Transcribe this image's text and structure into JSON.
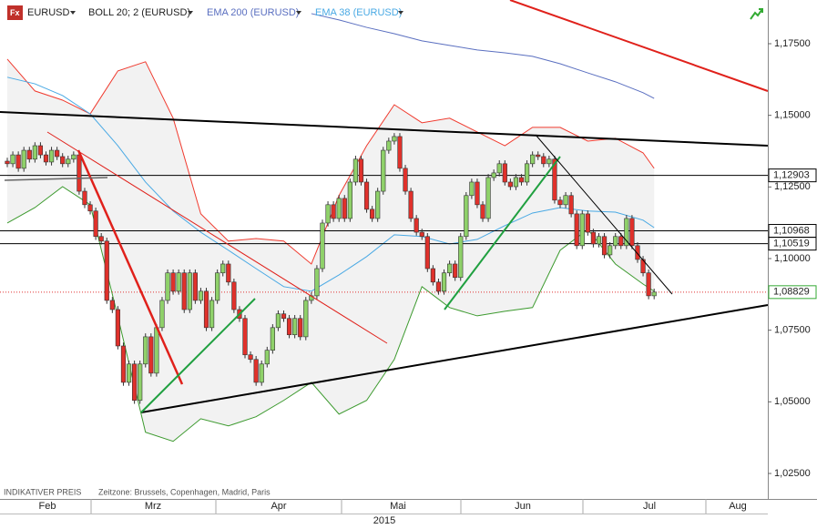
{
  "chart_data": {
    "type": "candlestick",
    "symbol": "EURUSD",
    "legend": [
      "BOLL 20; 2 (EURUSD)",
      "EMA 200 (EURUSD)",
      "EMA 38 (EURUSD)"
    ],
    "footer": [
      "INDIKATIVER PREIS",
      "Zeitzone: Brussels, Copenhagen, Madrid, Paris"
    ],
    "months": [
      "Feb",
      "Mrz",
      "Apr",
      "Mai",
      "Jun",
      "Jul",
      "Aug"
    ],
    "year": "2015",
    "ylim": [
      1.0161,
      1.19025
    ],
    "yticks": [
      {
        "value": 1.025,
        "label": "1,02500"
      },
      {
        "value": 1.05,
        "label": "1,05000"
      },
      {
        "value": 1.075,
        "label": "1,07500"
      },
      {
        "value": 1.1,
        "label": "1,10000"
      },
      {
        "value": 1.125,
        "label": "1,12500"
      },
      {
        "value": 1.15,
        "label": "1,15000"
      },
      {
        "value": 1.175,
        "label": "1,17500"
      }
    ],
    "price_levels": [
      {
        "value": 1.12903,
        "label": "1,12903"
      },
      {
        "value": 1.10968,
        "label": "1,10968"
      },
      {
        "value": 1.10519,
        "label": "1,10519"
      }
    ],
    "last_price": {
      "value": 1.08829,
      "label": "1,08829"
    },
    "up_color": "#8fd16a",
    "down_color": "#e0312b",
    "open": [
      1.134,
      1.1331,
      1.1362,
      1.1315,
      1.1378,
      1.1347,
      1.1394,
      1.1362,
      1.1337,
      1.1378,
      1.1356,
      1.1331,
      1.1347,
      1.1362,
      1.1235,
      1.1188,
      1.1166,
      1.1077,
      1.1061,
      1.0854,
      1.0822,
      1.0695,
      1.0568,
      1.0632,
      1.0505,
      1.0632,
      1.0727,
      1.06,
      1.0759,
      1.0854,
      1.095,
      1.0886,
      1.095,
      1.0822,
      1.095,
      1.0854,
      1.0886,
      1.0759,
      1.0854,
      1.095,
      1.0981,
      1.0918,
      1.0822,
      1.0791,
      1.0664,
      1.0648,
      1.0568,
      1.0632,
      1.068,
      1.0759,
      1.0807,
      1.0791,
      1.0734,
      1.0791,
      1.0727,
      1.0854,
      1.087,
      1.0965,
      1.1124,
      1.1188,
      1.114,
      1.121,
      1.114,
      1.1267,
      1.1347,
      1.1267,
      1.1172,
      1.114,
      1.1235,
      1.1378,
      1.141,
      1.1426,
      1.1315,
      1.1235,
      1.114,
      1.1092,
      1.1077,
      1.0965,
      1.0918,
      1.0886,
      1.095,
      1.0981,
      1.0934,
      1.1077,
      1.122,
      1.1267,
      1.1188,
      1.114,
      1.1283,
      1.1299,
      1.1331,
      1.1267,
      1.1251,
      1.1283,
      1.1267,
      1.1331,
      1.1362,
      1.1356,
      1.1331,
      1.1347,
      1.1204,
      1.1188,
      1.122,
      1.1156,
      1.1045,
      1.1156,
      1.1092,
      1.1051,
      1.1077,
      1.1013,
      1.1045,
      1.1077,
      1.1045,
      1.114,
      1.1045,
      1.0997,
      1.095,
      1.087
    ],
    "high": [
      1.1352,
      1.1374,
      1.1374,
      1.139,
      1.139,
      1.1406,
      1.1406,
      1.1374,
      1.139,
      1.139,
      1.1368,
      1.1359,
      1.1374,
      1.1374,
      1.1247,
      1.12,
      1.1178,
      1.1089,
      1.1073,
      1.0866,
      1.0834,
      1.0707,
      1.0644,
      1.0644,
      1.0644,
      1.0739,
      1.0739,
      1.0771,
      1.0866,
      1.0962,
      1.0962,
      1.0962,
      1.0962,
      1.0962,
      1.0962,
      1.0898,
      1.0898,
      1.0866,
      1.0962,
      1.0993,
      1.0993,
      1.093,
      1.0834,
      1.0803,
      1.0676,
      1.066,
      1.0644,
      1.0692,
      1.0771,
      1.0819,
      1.0819,
      1.0803,
      1.0803,
      1.0803,
      1.0866,
      1.0882,
      1.0977,
      1.1136,
      1.12,
      1.12,
      1.1222,
      1.1222,
      1.1279,
      1.1359,
      1.1359,
      1.1279,
      1.1184,
      1.1247,
      1.139,
      1.1422,
      1.1438,
      1.1438,
      1.1327,
      1.1247,
      1.1152,
      1.1104,
      1.1089,
      1.0977,
      1.093,
      1.0962,
      1.0993,
      1.0993,
      1.1089,
      1.1232,
      1.1279,
      1.1279,
      1.12,
      1.1295,
      1.1311,
      1.1343,
      1.1343,
      1.1279,
      1.1295,
      1.1295,
      1.1343,
      1.1374,
      1.1374,
      1.1368,
      1.1359,
      1.1359,
      1.1216,
      1.1232,
      1.1232,
      1.1168,
      1.1168,
      1.1168,
      1.1104,
      1.1089,
      1.1089,
      1.1057,
      1.1089,
      1.1089,
      1.1152,
      1.1152,
      1.1057,
      1.1009,
      1.0962,
      1.0895
    ],
    "low": [
      1.1319,
      1.1319,
      1.1303,
      1.1303,
      1.1335,
      1.1335,
      1.135,
      1.1325,
      1.1325,
      1.1344,
      1.1319,
      1.1319,
      1.1335,
      1.1223,
      1.1176,
      1.1154,
      1.1065,
      1.1049,
      1.0842,
      1.081,
      1.0683,
      1.0556,
      1.0556,
      1.0493,
      1.0493,
      1.062,
      1.0588,
      1.0588,
      1.0747,
      1.0842,
      1.0874,
      1.0874,
      1.081,
      1.081,
      1.0842,
      1.0842,
      1.0747,
      1.0747,
      1.0842,
      1.0938,
      1.0906,
      1.081,
      1.0779,
      1.0652,
      1.0636,
      1.0556,
      1.0556,
      1.062,
      1.0668,
      1.0747,
      1.0779,
      1.0722,
      1.0722,
      1.0715,
      1.0715,
      1.0842,
      1.0858,
      1.0953,
      1.1112,
      1.1128,
      1.1128,
      1.1128,
      1.1128,
      1.1255,
      1.1255,
      1.116,
      1.1128,
      1.1128,
      1.1223,
      1.1366,
      1.1398,
      1.1303,
      1.1223,
      1.1128,
      1.108,
      1.1065,
      1.0953,
      1.0906,
      1.0874,
      1.0874,
      1.0938,
      1.0922,
      1.0922,
      1.1065,
      1.1208,
      1.1176,
      1.1128,
      1.1128,
      1.1271,
      1.1287,
      1.1255,
      1.1239,
      1.1239,
      1.1255,
      1.1255,
      1.1319,
      1.1344,
      1.1319,
      1.1319,
      1.1192,
      1.1176,
      1.1176,
      1.1144,
      1.1033,
      1.1033,
      1.108,
      1.1039,
      1.1039,
      1.1001,
      1.1001,
      1.1033,
      1.1033,
      1.1033,
      1.1033,
      1.0985,
      1.0938,
      1.0858,
      1.0858
    ],
    "close": [
      1.1331,
      1.1362,
      1.1315,
      1.1378,
      1.1347,
      1.1394,
      1.1362,
      1.1337,
      1.1378,
      1.1356,
      1.1331,
      1.1347,
      1.1362,
      1.1235,
      1.1188,
      1.1166,
      1.1077,
      1.1061,
      1.0854,
      1.0822,
      1.0695,
      1.0568,
      1.0632,
      1.0505,
      1.0632,
      1.0727,
      1.06,
      1.0759,
      1.0854,
      1.095,
      1.0886,
      1.095,
      1.0822,
      1.095,
      1.0854,
      1.0886,
      1.0759,
      1.0854,
      1.095,
      1.0981,
      1.0918,
      1.0822,
      1.0791,
      1.0664,
      1.0648,
      1.0568,
      1.0632,
      1.068,
      1.0759,
      1.0807,
      1.0791,
      1.0734,
      1.0791,
      1.0727,
      1.0854,
      1.087,
      1.0965,
      1.1124,
      1.1188,
      1.114,
      1.121,
      1.114,
      1.1267,
      1.1347,
      1.1267,
      1.1172,
      1.114,
      1.1235,
      1.1378,
      1.141,
      1.1426,
      1.1315,
      1.1235,
      1.114,
      1.1092,
      1.1077,
      1.0965,
      1.0918,
      1.0886,
      1.095,
      1.0981,
      1.0934,
      1.1077,
      1.122,
      1.1267,
      1.1188,
      1.114,
      1.1283,
      1.1299,
      1.1331,
      1.1267,
      1.1251,
      1.1283,
      1.1267,
      1.1331,
      1.1362,
      1.1356,
      1.1331,
      1.1347,
      1.1204,
      1.1188,
      1.122,
      1.1156,
      1.1045,
      1.1156,
      1.1092,
      1.1051,
      1.1077,
      1.1013,
      1.1045,
      1.1077,
      1.1045,
      1.114,
      1.1045,
      1.0997,
      1.095,
      1.087,
      1.0883
    ],
    "bollinger": {
      "x": [
        0,
        5,
        10,
        15,
        20,
        25,
        30,
        35,
        40,
        45,
        50,
        55,
        60,
        65,
        70,
        75,
        80,
        85,
        90,
        95,
        100,
        105,
        110,
        115,
        117
      ],
      "upper": [
        1.1696,
        1.1585,
        1.1553,
        1.1505,
        1.1655,
        1.1687,
        1.149,
        1.1156,
        1.1061,
        1.107,
        1.1061,
        1.0981,
        1.122,
        1.1394,
        1.1537,
        1.1474,
        1.149,
        1.1442,
        1.1394,
        1.1458,
        1.1458,
        1.141,
        1.142,
        1.1369,
        1.1315
      ],
      "lower": [
        1.1124,
        1.1178,
        1.1251,
        1.1188,
        1.0797,
        1.0394,
        1.0362,
        1.0441,
        1.0416,
        1.0448,
        1.0505,
        1.0568,
        1.0457,
        1.0505,
        1.0648,
        1.0902,
        1.0829,
        1.08,
        1.0816,
        1.0829,
        1.1029,
        1.1102,
        1.0981,
        1.0911,
        1.0886
      ],
      "upper_color": "#f03a2e",
      "lower_color": "#3c9a2e",
      "fill": "#f2f2f2"
    },
    "ema": [
      {
        "name": "EMA 200 (EURUSD)",
        "color": "#5a6fc0",
        "x": [
          55,
          60,
          65,
          70,
          75,
          80,
          85,
          90,
          95,
          100,
          105,
          110,
          115,
          117
        ],
        "values": [
          1.1855,
          1.1833,
          1.1807,
          1.1785,
          1.176,
          1.1744,
          1.1728,
          1.1718,
          1.1706,
          1.168,
          1.1648,
          1.1617,
          1.1579,
          1.1559
        ]
      },
      {
        "name": "EMA 38 (EURUSD)",
        "color": "#49a9e4",
        "x": [
          0,
          5,
          10,
          15,
          20,
          25,
          30,
          35,
          40,
          45,
          50,
          55,
          60,
          65,
          70,
          75,
          80,
          85,
          90,
          95,
          100,
          105,
          110,
          115,
          117
        ],
        "values": [
          1.1633,
          1.161,
          1.1569,
          1.1505,
          1.1394,
          1.1267,
          1.1166,
          1.1092,
          1.1029,
          1.0965,
          1.0902,
          1.0886,
          1.0943,
          1.1007,
          1.1083,
          1.1077,
          1.1051,
          1.1067,
          1.1115,
          1.1159,
          1.1178,
          1.1166,
          1.1162,
          1.1134,
          1.1108
        ]
      }
    ]
  }
}
